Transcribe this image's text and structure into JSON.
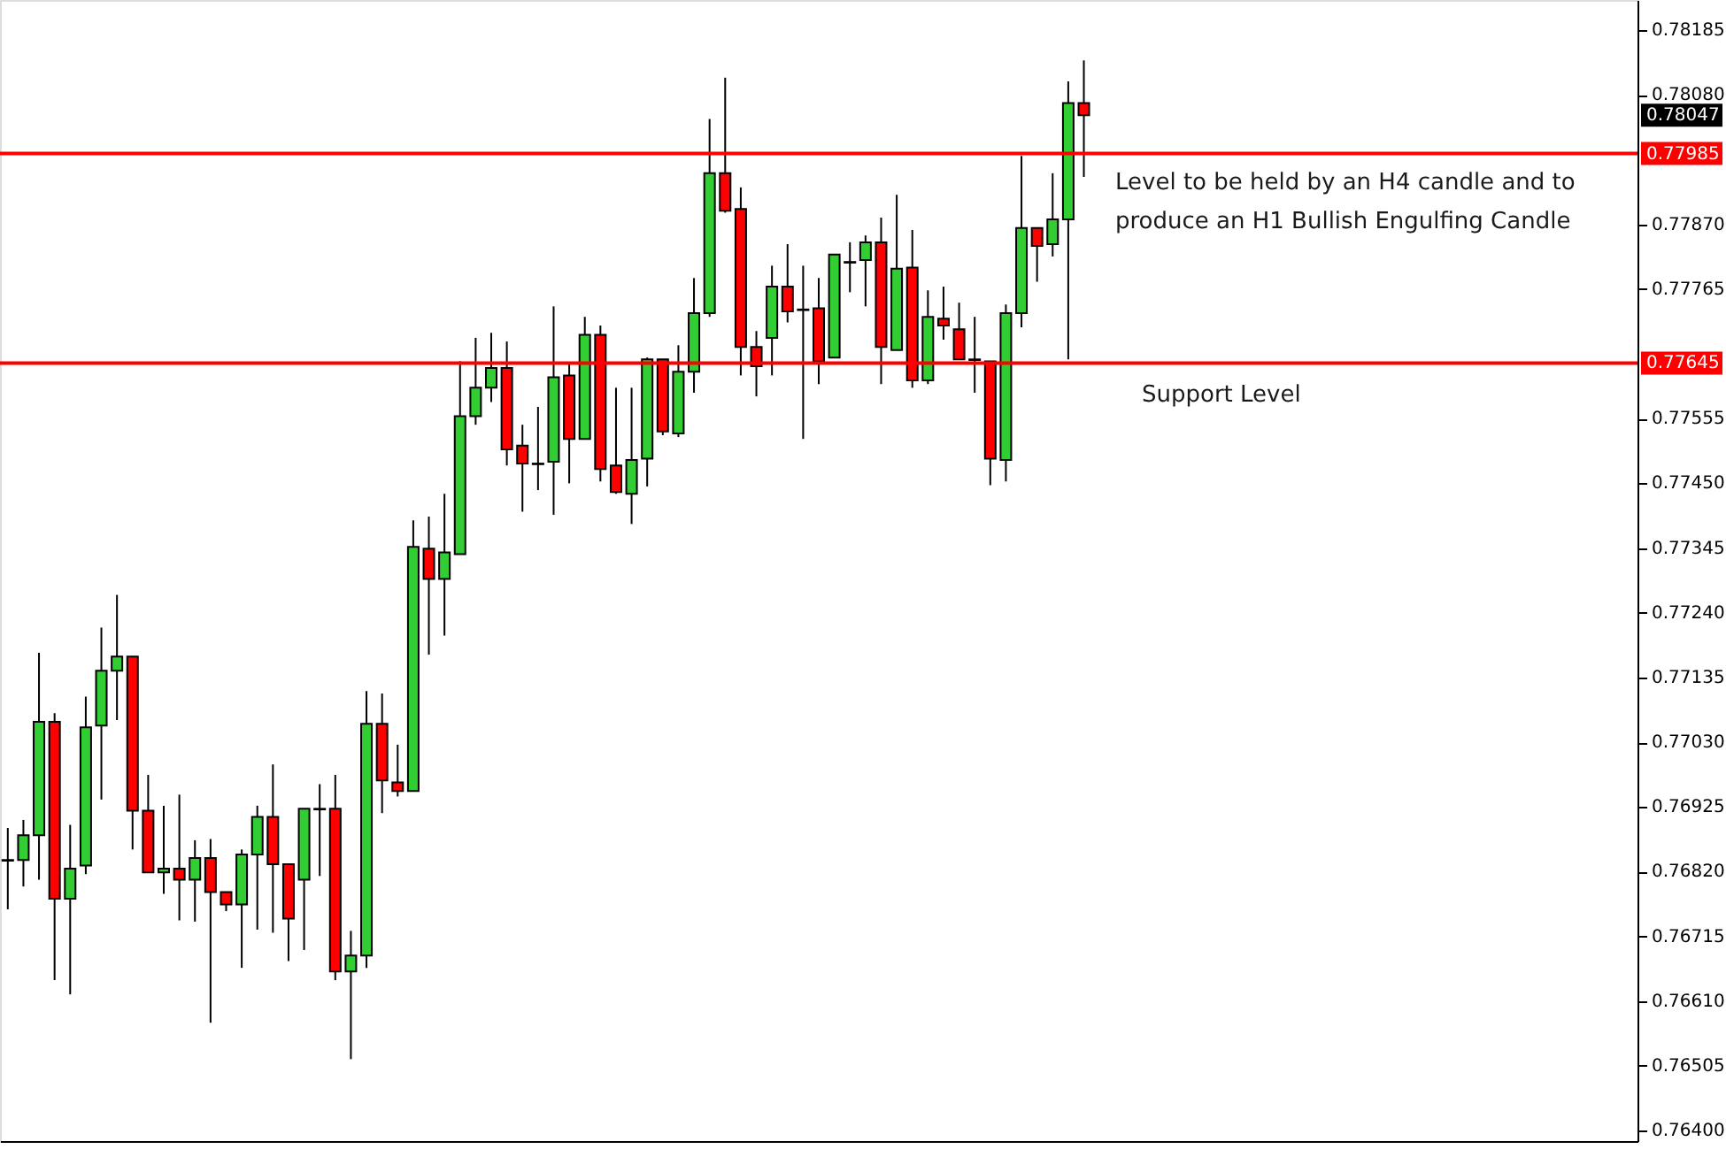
{
  "chart_data": {
    "type": "candlestick",
    "categories": [
      null,
      null,
      null,
      null,
      null,
      null,
      null,
      null,
      null,
      null,
      null,
      null,
      null,
      null,
      null,
      null,
      null,
      null,
      null,
      null,
      null,
      null,
      null,
      null,
      null,
      null,
      null,
      null,
      null,
      null,
      null,
      null,
      null,
      null,
      null,
      null,
      null,
      null,
      null,
      null,
      null,
      null,
      null,
      null,
      null,
      null,
      null,
      null,
      null,
      null,
      null,
      null,
      null,
      null,
      null,
      null,
      null,
      null,
      null,
      null,
      null,
      null,
      null,
      null,
      null,
      null,
      null,
      null,
      null,
      null,
      null,
      null,
      null,
      null,
      null,
      null,
      null,
      null,
      null,
      null,
      null,
      null,
      null,
      null,
      null,
      null,
      null,
      null,
      null,
      null,
      null,
      null,
      null,
      null,
      null,
      null,
      null,
      null,
      null,
      null,
      null,
      null,
      null,
      null,
      null
    ],
    "ohlc": [
      [
        0.76839,
        0.76891,
        0.76759,
        0.76838
      ],
      [
        0.76839,
        0.76904,
        0.76796,
        0.76879
      ],
      [
        0.76879,
        0.77175,
        0.76807,
        0.77063
      ],
      [
        0.77063,
        0.77077,
        0.76644,
        0.76776
      ],
      [
        0.76776,
        0.76896,
        0.76621,
        0.76825
      ],
      [
        0.7683,
        0.77104,
        0.76816,
        0.77054
      ],
      [
        0.77057,
        0.77216,
        0.76937,
        0.77146
      ],
      [
        0.77146,
        0.77269,
        0.77066,
        0.77169
      ],
      [
        0.77169,
        0.77169,
        0.76856,
        0.76919
      ],
      [
        0.76919,
        0.76977,
        0.76819,
        0.76819
      ],
      [
        0.76819,
        0.76927,
        0.76784,
        0.76825
      ],
      [
        0.76825,
        0.76945,
        0.76741,
        0.76807
      ],
      [
        0.76807,
        0.76871,
        0.76739,
        0.76842
      ],
      [
        0.76842,
        0.76873,
        0.76575,
        0.76787
      ],
      [
        0.76787,
        0.76787,
        0.76756,
        0.76767
      ],
      [
        0.76767,
        0.76856,
        0.76664,
        0.76848
      ],
      [
        0.76848,
        0.76927,
        0.76726,
        0.76909
      ],
      [
        0.76909,
        0.76994,
        0.76721,
        0.76832
      ],
      [
        0.76832,
        0.76832,
        0.76675,
        0.76744
      ],
      [
        0.76807,
        0.76922,
        0.76693,
        0.76922
      ],
      [
        0.76922,
        0.76962,
        0.76813,
        0.76921
      ],
      [
        0.76922,
        0.76977,
        0.76644,
        0.76658
      ],
      [
        0.76658,
        0.76724,
        0.76516,
        0.76684
      ],
      [
        0.76684,
        0.77113,
        0.76664,
        0.7706
      ],
      [
        0.7706,
        0.77109,
        0.76915,
        0.76968
      ],
      [
        0.76965,
        0.77026,
        0.76942,
        0.76951
      ],
      [
        0.76951,
        0.7739,
        0.76951,
        0.77347
      ],
      [
        0.77344,
        0.77396,
        0.77172,
        0.77295
      ],
      [
        0.77295,
        0.77433,
        0.77203,
        0.77338
      ],
      [
        0.77335,
        0.77648,
        0.77335,
        0.77559
      ],
      [
        0.77559,
        0.77686,
        0.77545,
        0.77605
      ],
      [
        0.77605,
        0.77694,
        0.77582,
        0.77637
      ],
      [
        0.77637,
        0.7768,
        0.77479,
        0.77505
      ],
      [
        0.77511,
        0.77545,
        0.77404,
        0.77482
      ],
      [
        0.77482,
        0.77574,
        0.77439,
        0.77481
      ],
      [
        0.77485,
        0.77737,
        0.77399,
        0.77622
      ],
      [
        0.77625,
        0.77645,
        0.7745,
        0.77522
      ],
      [
        0.77522,
        0.7772,
        0.77522,
        0.77691
      ],
      [
        0.77691,
        0.77706,
        0.77453,
        0.77473
      ],
      [
        0.77479,
        0.77605,
        0.77433,
        0.77436
      ],
      [
        0.77433,
        0.77605,
        0.77384,
        0.77488
      ],
      [
        0.7749,
        0.77654,
        0.77445,
        0.77651
      ],
      [
        0.77651,
        0.77651,
        0.77528,
        0.77534
      ],
      [
        0.77531,
        0.77674,
        0.77525,
        0.77631
      ],
      [
        0.77631,
        0.77783,
        0.77597,
        0.77726
      ],
      [
        0.77726,
        0.78041,
        0.7772,
        0.77953
      ],
      [
        0.77953,
        0.78108,
        0.77889,
        0.77892
      ],
      [
        0.77895,
        0.7793,
        0.77625,
        0.77671
      ],
      [
        0.77671,
        0.77697,
        0.77591,
        0.7764
      ],
      [
        0.77686,
        0.77803,
        0.77625,
        0.77769
      ],
      [
        0.77769,
        0.77838,
        0.77711,
        0.77729
      ],
      [
        0.77732,
        0.77803,
        0.77522,
        0.77731
      ],
      [
        0.77734,
        0.77783,
        0.77611,
        0.77648
      ],
      [
        0.77654,
        0.77821,
        0.77654,
        0.77821
      ],
      [
        0.77809,
        0.77841,
        0.7776,
        0.77808
      ],
      [
        0.77812,
        0.77852,
        0.77737,
        0.77841
      ],
      [
        0.77841,
        0.77881,
        0.77611,
        0.77671
      ],
      [
        0.77666,
        0.77918,
        0.77666,
        0.77798
      ],
      [
        0.778,
        0.77861,
        0.77605,
        0.77617
      ],
      [
        0.77617,
        0.77763,
        0.77611,
        0.7772
      ],
      [
        0.77717,
        0.77769,
        0.77683,
        0.77706
      ],
      [
        0.777,
        0.77743,
        0.77651,
        0.77651
      ],
      [
        0.77651,
        0.7772,
        0.77597,
        0.7765
      ],
      [
        0.77648,
        0.77648,
        0.77447,
        0.7749
      ],
      [
        0.77488,
        0.7774,
        0.77453,
        0.77726
      ],
      [
        0.77726,
        0.77981,
        0.77703,
        0.77864
      ],
      [
        0.77864,
        0.77864,
        0.77777,
        0.77835
      ],
      [
        0.77838,
        0.77953,
        0.77818,
        0.77878
      ],
      [
        0.77878,
        0.78102,
        0.77651,
        0.78067
      ],
      [
        0.78067,
        0.78136,
        0.77947,
        0.78047
      ],
      null,
      null,
      null,
      null,
      null,
      null,
      null,
      null,
      null,
      null,
      null,
      null,
      null,
      null,
      null,
      null,
      null,
      null,
      null,
      null,
      null,
      null,
      null,
      null,
      null,
      null,
      null,
      null,
      null,
      null,
      null,
      null,
      null,
      null,
      null
    ],
    "colors": [
      "#000000",
      "#32cd32",
      "#32cd32",
      "#ff0000",
      "#32cd32",
      "#32cd32",
      "#32cd32",
      "#32cd32",
      "#ff0000",
      "#ff0000",
      "#32cd32",
      "#ff0000",
      "#32cd32",
      "#ff0000",
      "#ff0000",
      "#32cd32",
      "#32cd32",
      "#ff0000",
      "#ff0000",
      "#32cd32",
      "#000000",
      "#ff0000",
      "#32cd32",
      "#32cd32",
      "#ff0000",
      "#ff0000",
      "#32cd32",
      "#ff0000",
      "#32cd32",
      "#32cd32",
      "#32cd32",
      "#32cd32",
      "#ff0000",
      "#ff0000",
      "#000000",
      "#32cd32",
      "#ff0000",
      "#32cd32",
      "#ff0000",
      "#ff0000",
      "#32cd32",
      "#32cd32",
      "#ff0000",
      "#32cd32",
      "#32cd32",
      "#32cd32",
      "#ff0000",
      "#ff0000",
      "#ff0000",
      "#32cd32",
      "#ff0000",
      "#000000",
      "#ff0000",
      "#32cd32",
      "#000000",
      "#32cd32",
      "#ff0000",
      "#32cd32",
      "#ff0000",
      "#32cd32",
      "#ff0000",
      "#ff0000",
      "#000000",
      "#ff0000",
      "#32cd32",
      "#32cd32",
      "#ff0000",
      "#32cd32",
      "#32cd32",
      "#ff0000",
      null,
      null,
      null,
      null,
      null,
      null,
      null,
      null,
      null,
      null,
      null,
      null,
      null,
      null,
      null,
      null,
      null,
      null,
      null,
      null,
      null,
      null,
      null,
      null,
      null,
      null,
      null,
      null,
      null,
      null,
      null,
      null,
      null,
      null,
      null
    ],
    "ylim": [
      0.76383,
      0.78234
    ],
    "yticks": [
      {
        "value": 0.764,
        "label": "0.76400"
      },
      {
        "value": 0.76505,
        "label": "0.76505"
      },
      {
        "value": 0.7661,
        "label": "0.76610"
      },
      {
        "value": 0.76715,
        "label": "0.76715"
      },
      {
        "value": 0.7682,
        "label": "0.76820"
      },
      {
        "value": 0.76925,
        "label": "0.76925"
      },
      {
        "value": 0.7703,
        "label": "0.77030"
      },
      {
        "value": 0.77135,
        "label": "0.77135"
      },
      {
        "value": 0.7724,
        "label": "0.77240"
      },
      {
        "value": 0.77345,
        "label": "0.77345"
      },
      {
        "value": 0.7745,
        "label": "0.77450"
      },
      {
        "value": 0.77555,
        "label": "0.77555"
      },
      {
        "value": 0.77765,
        "label": "0.77765"
      },
      {
        "value": 0.7787,
        "label": "0.77870"
      },
      {
        "value": 0.7808,
        "label": "0.78080"
      },
      {
        "value": 0.78185,
        "label": "0.78185"
      }
    ],
    "tick_labels": "y",
    "grid": false,
    "ref_lines": [
      {
        "axis": "y",
        "value": 0.77985,
        "label": "0.77985",
        "color": "#ff0000"
      },
      {
        "axis": "y",
        "value": 0.77645,
        "label": "0.77645",
        "color": "#ff0000"
      }
    ],
    "annotations": [
      "0.78047",
      "Level to be held by an H4 candle and to\nproduce an H1 Bullish Engulfing Candle",
      "Support Level"
    ]
  }
}
